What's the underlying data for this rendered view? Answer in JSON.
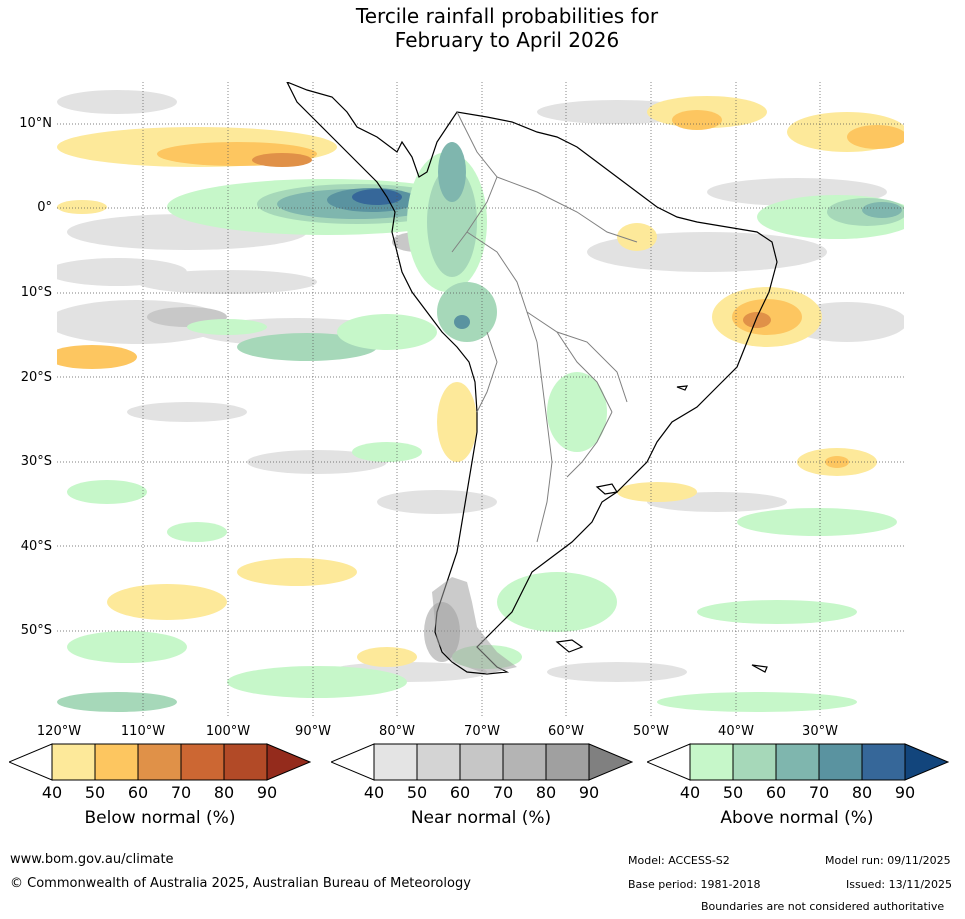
{
  "title": {
    "line1": "Tercile rainfall probabilities for",
    "line2": "February to April 2026"
  },
  "map": {
    "latitude_labels": [
      "10°N",
      "0°",
      "10°S",
      "20°S",
      "30°S",
      "40°S",
      "50°S"
    ],
    "longitude_labels": [
      "120°W",
      "110°W",
      "100°W",
      "90°W",
      "80°W",
      "70°W",
      "60°W",
      "50°W",
      "40°W",
      "30°W"
    ],
    "colors": {
      "land_outline": "#000000",
      "borders": "#808080",
      "gridlines": "#555555",
      "ocean": "#ffffff"
    }
  },
  "legends": [
    {
      "title": "Below normal (%)",
      "labels": [
        "40",
        "50",
        "60",
        "70",
        "80",
        "90"
      ],
      "colors": [
        "#ffffff",
        "#fde99a",
        "#fdc660",
        "#e09148",
        "#cc6733",
        "#b24a27",
        "#942b1c"
      ]
    },
    {
      "title": "Near normal (%)",
      "labels": [
        "40",
        "50",
        "60",
        "70",
        "80",
        "90"
      ],
      "colors": [
        "#ffffff",
        "#e4e4e4",
        "#d4d4d4",
        "#c6c6c6",
        "#b4b4b4",
        "#a0a0a0",
        "#808080"
      ]
    },
    {
      "title": "Above normal (%)",
      "labels": [
        "40",
        "50",
        "60",
        "70",
        "80",
        "90"
      ],
      "colors": [
        "#ffffff",
        "#c6f7c9",
        "#a6d8b9",
        "#7fb6ae",
        "#5a93a0",
        "#366799",
        "#12457c"
      ]
    }
  ],
  "footer": {
    "website": "www.bom.gov.au/climate",
    "copyright": "© Commonwealth of Australia 2025, Australian Bureau of Meteorology",
    "model": "Model: ACCESS-S2",
    "model_run": "Model run: 09/11/2025",
    "base_period": "Base period: 1981-2018",
    "issued": "Issued: 13/11/2025",
    "disclaimer": "Boundaries are not considered authoritative"
  }
}
